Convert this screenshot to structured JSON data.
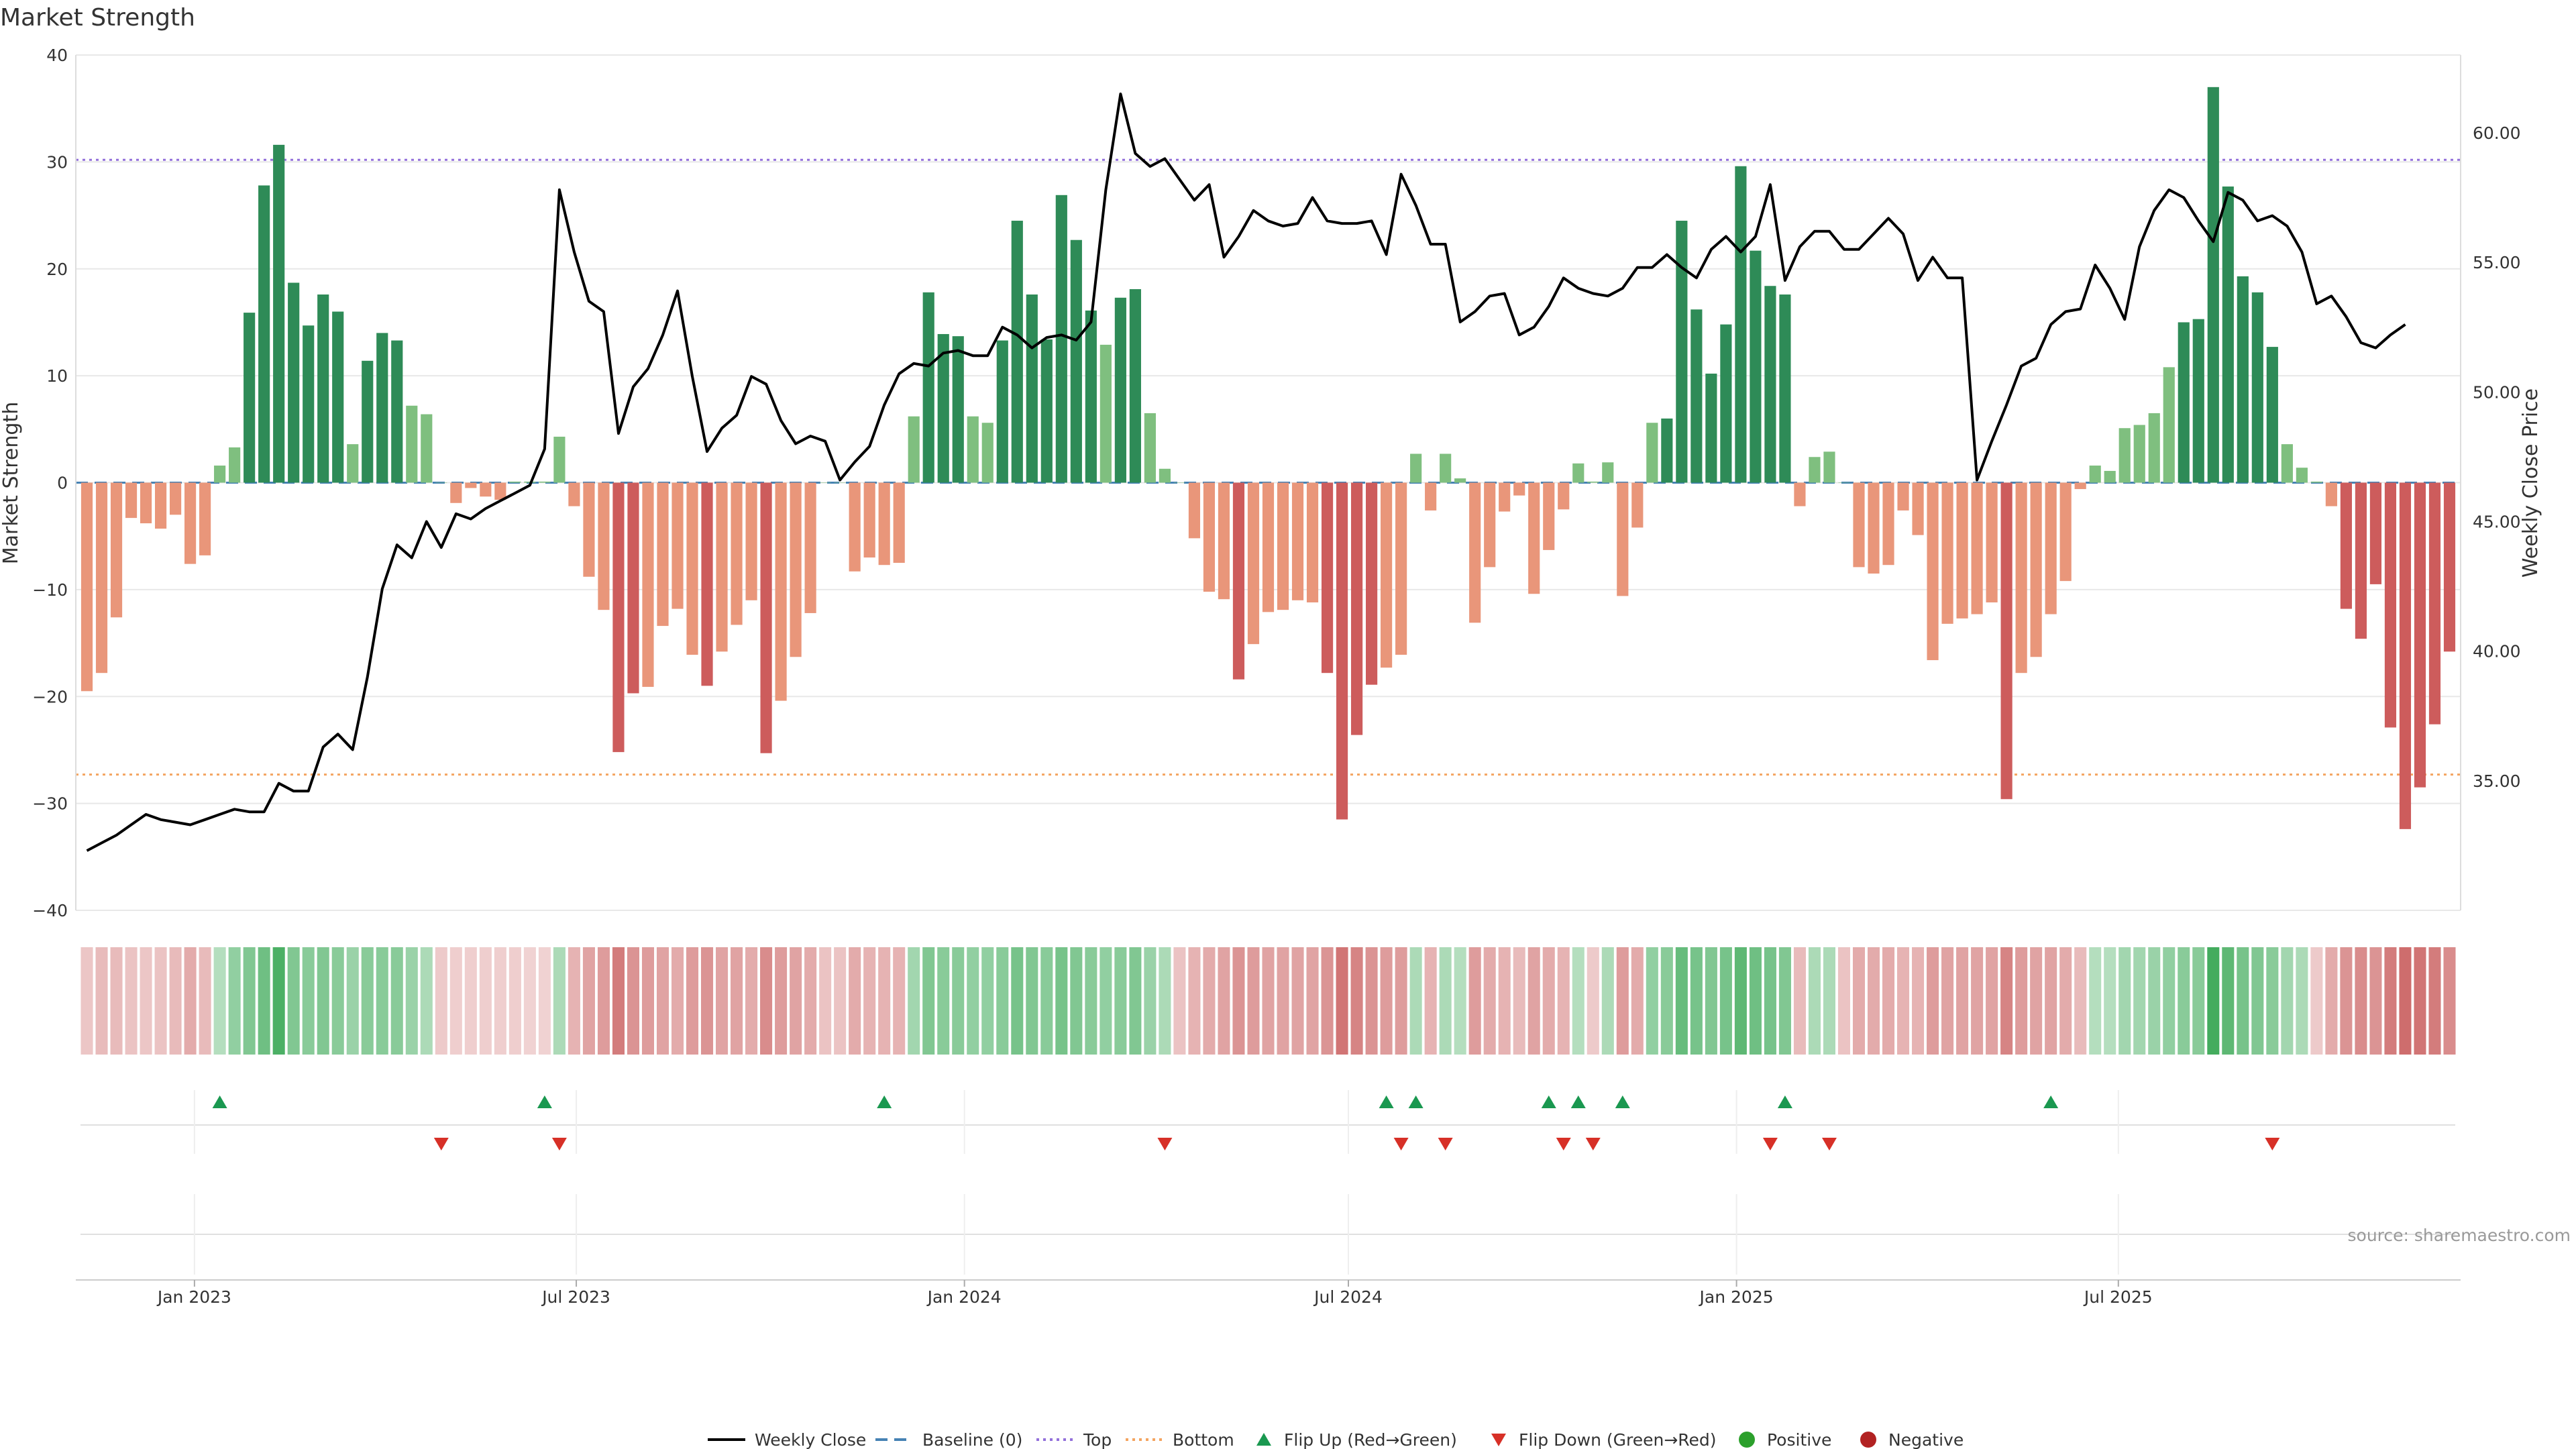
{
  "chart_data": {
    "type": "bar",
    "title": "Market Strength",
    "ylabel": "Market Strength",
    "y2label": "Weekly Close Price",
    "ylim": [
      -40,
      40
    ],
    "y2lim": [
      30.0,
      63.0
    ],
    "yticks": [
      40,
      30,
      20,
      10,
      0,
      -10,
      -20,
      -30,
      -40
    ],
    "yticks_labels": [
      "40",
      "30",
      "20",
      "10",
      "0",
      "−10",
      "−20",
      "−30",
      "−40"
    ],
    "y2ticks": [
      60,
      55,
      50,
      45,
      40,
      35
    ],
    "y2ticks_labels": [
      "60.00",
      "55.00",
      "50.00",
      "45.00",
      "40.00",
      "35.00"
    ],
    "x_start": "2022-11-11",
    "x_interval_days": 7,
    "xticks": [
      "2023-01-01",
      "2023-07-01",
      "2024-01-01",
      "2024-07-01",
      "2025-01-01",
      "2025-07-01"
    ],
    "xticks_labels": [
      "Jan 2023",
      "Jul 2023",
      "Jan 2024",
      "Jul 2024",
      "Jan 2025",
      "Jul 2025"
    ],
    "top_line": 30.2,
    "bottom_line": -27.3,
    "colors": {
      "positive_strong": "#2e8b57",
      "positive_weak": "#7fbf7f",
      "negative_strong": "#cd5c5c",
      "negative_weak": "#e9967a",
      "close_line": "#000000",
      "baseline": "#4682b4",
      "top": "#9370db",
      "bottom": "#f4a460",
      "flip_up": "#1a9850",
      "flip_down": "#d73027",
      "grid": "#e8e8e8"
    },
    "strength": [
      -19.5,
      -17.8,
      -12.6,
      -3.3,
      -3.8,
      -4.3,
      -3.0,
      -7.6,
      -6.8,
      1.6,
      3.3,
      15.9,
      27.8,
      31.6,
      18.7,
      14.7,
      17.6,
      16.0,
      3.6,
      11.4,
      14.0,
      13.3,
      7.2,
      6.4,
      0.0,
      -1.9,
      -0.5,
      -1.3,
      -1.6,
      0.1,
      0.1,
      0.1,
      4.3,
      -2.2,
      -8.8,
      -11.9,
      -25.2,
      -19.7,
      -19.1,
      -13.4,
      -11.8,
      -16.1,
      -19.0,
      -15.8,
      -13.3,
      -11.0,
      -25.3,
      -20.4,
      -16.3,
      -12.2,
      0.0,
      0.0,
      -8.3,
      -7.0,
      -7.7,
      -7.5,
      6.2,
      17.8,
      13.9,
      13.7,
      6.2,
      5.6,
      13.3,
      24.5,
      17.6,
      13.4,
      26.9,
      22.7,
      16.1,
      12.9,
      17.3,
      18.1,
      6.5,
      1.3,
      0.0,
      -5.2,
      -10.2,
      -10.9,
      -18.4,
      -15.1,
      -12.1,
      -11.9,
      -11.0,
      -11.2,
      -17.8,
      -31.5,
      -23.6,
      -18.9,
      -17.3,
      -16.1,
      2.7,
      -2.6,
      2.7,
      0.4,
      -13.1,
      -7.9,
      -2.7,
      -1.2,
      -10.4,
      -6.3,
      -2.5,
      1.8,
      0.1,
      1.9,
      -10.6,
      -4.2,
      5.6,
      6.0,
      24.5,
      16.2,
      10.2,
      14.8,
      29.6,
      21.7,
      18.4,
      17.6,
      -2.2,
      2.4,
      2.9,
      0.0,
      -7.9,
      -8.5,
      -7.7,
      -2.6,
      -4.9,
      -16.6,
      -13.2,
      -12.7,
      -12.3,
      -11.2,
      -29.6,
      -17.8,
      -16.3,
      -12.3,
      -9.2,
      -0.6,
      1.6,
      1.1,
      5.1,
      5.4,
      6.5,
      10.8,
      15.0,
      15.3,
      37.0,
      27.7,
      19.3,
      17.8,
      12.7,
      3.6,
      1.4,
      0.1,
      -2.2,
      -11.8,
      -14.6,
      -9.5,
      -22.9,
      -32.4,
      -28.5,
      -22.6,
      -15.8
    ],
    "close": [
      32.3,
      32.6,
      32.9,
      33.3,
      33.7,
      33.5,
      33.4,
      33.3,
      33.5,
      33.7,
      33.9,
      33.8,
      33.8,
      34.9,
      34.6,
      34.6,
      36.3,
      36.8,
      36.2,
      39.0,
      42.4,
      44.1,
      43.6,
      45.0,
      44.0,
      45.3,
      45.1,
      45.5,
      45.8,
      46.1,
      46.4,
      47.8,
      57.8,
      55.4,
      53.5,
      53.1,
      48.4,
      50.2,
      50.9,
      52.2,
      53.9,
      50.6,
      47.7,
      48.6,
      49.1,
      50.6,
      50.3,
      48.9,
      48.0,
      48.3,
      48.1,
      46.6,
      47.3,
      47.9,
      49.5,
      50.7,
      51.1,
      51.0,
      51.5,
      51.6,
      51.4,
      51.4,
      52.5,
      52.2,
      51.7,
      52.1,
      52.2,
      52.0,
      52.7,
      57.8,
      61.5,
      59.2,
      58.7,
      59.0,
      58.2,
      57.4,
      58.0,
      55.2,
      56.0,
      57.0,
      56.6,
      56.4,
      56.5,
      57.5,
      56.6,
      56.5,
      56.5,
      56.6,
      55.3,
      58.4,
      57.2,
      55.7,
      55.7,
      52.7,
      53.1,
      53.7,
      53.8,
      52.2,
      52.5,
      53.3,
      54.4,
      54.0,
      53.8,
      53.7,
      54.0,
      54.8,
      54.8,
      55.3,
      54.8,
      54.4,
      55.5,
      56.0,
      55.4,
      56.0,
      58.0,
      54.3,
      55.6,
      56.2,
      56.2,
      55.5,
      55.5,
      56.1,
      56.7,
      56.1,
      54.3,
      55.2,
      54.4,
      54.4,
      46.6,
      48.1,
      49.5,
      51.0,
      51.3,
      52.6,
      53.1,
      53.2,
      54.9,
      54.0,
      52.8,
      55.6,
      57.0,
      57.8,
      57.5,
      56.6,
      55.8,
      57.7,
      57.4,
      56.6,
      56.8,
      56.4,
      55.4,
      53.4,
      53.7,
      52.9,
      51.9,
      51.7,
      52.2,
      52.6
    ],
    "intensity": [
      -0.18,
      -0.25,
      -0.25,
      -0.2,
      -0.18,
      -0.2,
      -0.25,
      -0.35,
      -0.25,
      0.25,
      0.45,
      0.55,
      0.65,
      0.85,
      0.55,
      0.5,
      0.55,
      0.5,
      0.4,
      0.5,
      0.5,
      0.5,
      0.4,
      0.3,
      -0.15,
      -0.12,
      -0.12,
      -0.12,
      -0.12,
      -0.12,
      -0.1,
      -0.1,
      0.3,
      -0.3,
      -0.4,
      -0.45,
      -0.65,
      -0.5,
      -0.45,
      -0.4,
      -0.35,
      -0.45,
      -0.5,
      -0.4,
      -0.4,
      -0.35,
      -0.55,
      -0.45,
      -0.4,
      -0.35,
      -0.2,
      -0.2,
      -0.35,
      -0.3,
      -0.3,
      -0.3,
      0.35,
      0.55,
      0.5,
      0.5,
      0.45,
      0.45,
      0.5,
      0.6,
      0.55,
      0.5,
      0.6,
      0.55,
      0.5,
      0.45,
      0.5,
      0.55,
      0.4,
      0.3,
      -0.2,
      -0.3,
      -0.35,
      -0.4,
      -0.5,
      -0.45,
      -0.4,
      -0.4,
      -0.4,
      -0.4,
      -0.5,
      -0.7,
      -0.6,
      -0.5,
      -0.45,
      -0.45,
      0.3,
      -0.3,
      0.3,
      0.25,
      -0.45,
      -0.35,
      -0.3,
      -0.25,
      -0.4,
      -0.35,
      -0.3,
      0.25,
      -0.15,
      0.3,
      -0.45,
      -0.35,
      0.45,
      0.5,
      0.7,
      0.6,
      0.55,
      0.6,
      0.75,
      0.65,
      0.6,
      0.55,
      -0.25,
      0.3,
      0.3,
      -0.2,
      -0.35,
      -0.35,
      -0.35,
      -0.3,
      -0.3,
      -0.45,
      -0.4,
      -0.4,
      -0.4,
      -0.4,
      -0.6,
      -0.45,
      -0.4,
      -0.4,
      -0.35,
      -0.25,
      0.25,
      0.25,
      0.35,
      0.35,
      0.4,
      0.45,
      0.5,
      0.5,
      0.9,
      0.75,
      0.6,
      0.55,
      0.5,
      0.35,
      0.3,
      -0.15,
      -0.35,
      -0.5,
      -0.55,
      -0.5,
      -0.65,
      -0.75,
      -0.7,
      -0.65,
      -0.55
    ],
    "flip_up_weeks": [
      9,
      31,
      54,
      88,
      90,
      99,
      101,
      104,
      115,
      133
    ],
    "flip_down_weeks": [
      24,
      32,
      73,
      89,
      92,
      100,
      102,
      114,
      118,
      148
    ],
    "legend": [
      "Weekly Close",
      "Baseline (0)",
      "Top",
      "Bottom",
      "Flip Up (Red→Green)",
      "Flip Down (Green→Red)",
      "Positive",
      "Negative"
    ],
    "legend_placement": "bottom-center",
    "grid": true,
    "source": "source: sharemaestro.com"
  }
}
